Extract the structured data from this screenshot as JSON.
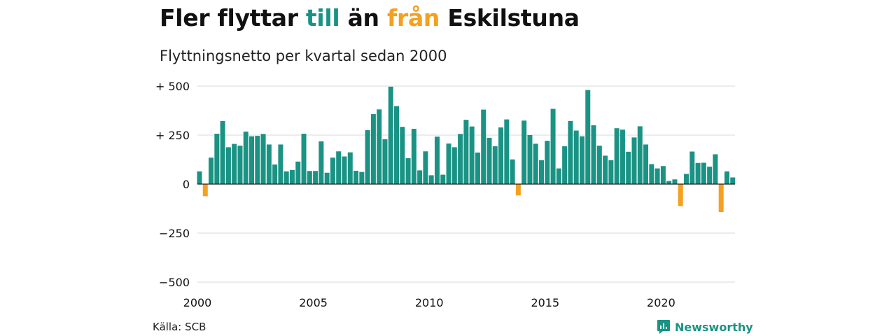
{
  "header": {
    "title_parts": [
      "Fler flyttar ",
      "till",
      " än ",
      "från",
      " Eskilstuna"
    ],
    "subtitle": "Flyttningsnetto per kvartal sedan 2000"
  },
  "colors": {
    "positive": "#1a9384",
    "negative": "#f4a020",
    "grid": "#d9d9d9",
    "brand": "#1a9384"
  },
  "footer": {
    "source": "Källa: SCB",
    "brand": "Newsworthy"
  },
  "chart_data": {
    "type": "bar",
    "x_start_year": 2000,
    "periods_per_year": 4,
    "xticks": [
      "2000",
      "2005",
      "2010",
      "2015",
      "2020"
    ],
    "yticks": [
      {
        "value": 500,
        "label": "+ 500"
      },
      {
        "value": 250,
        "label": "+ 250"
      },
      {
        "value": 0,
        "label": "0"
      },
      {
        "value": -250,
        "label": "−250"
      },
      {
        "value": -500,
        "label": "−500"
      }
    ],
    "ylim": [
      -500,
      500
    ],
    "grid": true,
    "values": [
      65,
      -62,
      135,
      257,
      322,
      188,
      205,
      196,
      268,
      244,
      246,
      256,
      202,
      100,
      202,
      65,
      72,
      115,
      257,
      67,
      67,
      218,
      58,
      135,
      167,
      141,
      162,
      68,
      62,
      275,
      357,
      381,
      229,
      497,
      398,
      292,
      132,
      282,
      70,
      167,
      45,
      242,
      48,
      207,
      188,
      256,
      328,
      294,
      161,
      380,
      236,
      193,
      289,
      330,
      126,
      -58,
      324,
      250,
      206,
      122,
      221,
      384,
      80,
      193,
      322,
      273,
      244,
      480,
      300,
      196,
      145,
      122,
      285,
      278,
      165,
      238,
      295,
      202,
      102,
      80,
      92,
      16,
      24,
      -112,
      52,
      166,
      108,
      109,
      89,
      152,
      -143,
      65,
      34
    ]
  }
}
